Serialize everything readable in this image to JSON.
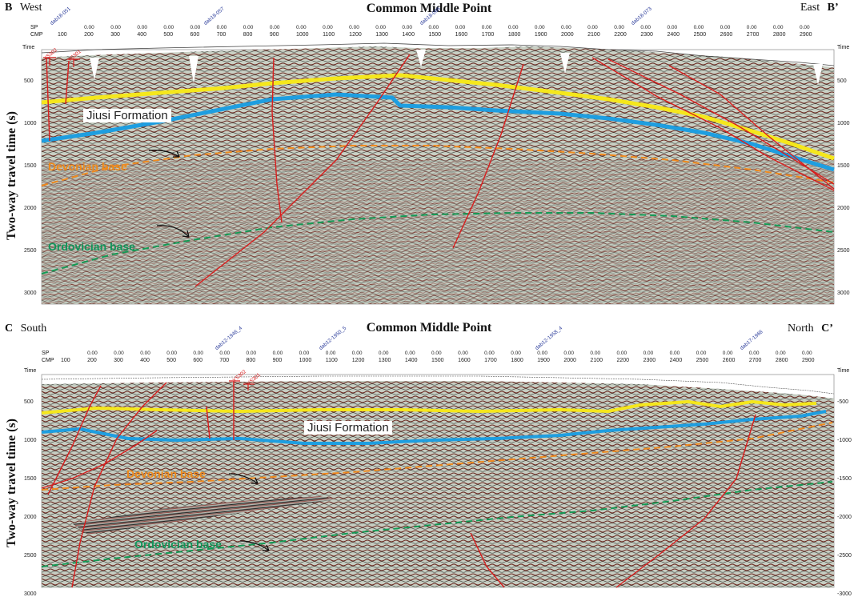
{
  "top": {
    "title": "Common Middle Point",
    "left_letter": "B",
    "left_dir": "West",
    "right_dir": "East",
    "right_letter": "B’",
    "header_sp": "SP",
    "header_cmp": "CMP",
    "header_time": "Time",
    "ylabel": "Two-way travel time (s)",
    "sp_values": [
      "0.00",
      "0.00",
      "0.00",
      "0.00",
      "0.00",
      "0.00",
      "0.00",
      "0.00",
      "0.00",
      "0.00",
      "0.00",
      "0.00",
      "0.00",
      "0.00",
      "0.00",
      "0.00",
      "0.00",
      "0.00",
      "0.00",
      "0.00",
      "0.00",
      "0.00",
      "0.00",
      "0.00",
      "0.00",
      "0.00",
      "0.00",
      "0.00"
    ],
    "cmp_ticks": [
      "100",
      "200",
      "300",
      "400",
      "500",
      "600",
      "700",
      "800",
      "900",
      "1000",
      "1100",
      "1200",
      "1300",
      "1400",
      "1500",
      "1600",
      "1700",
      "1800",
      "1900",
      "2000",
      "2100",
      "2200",
      "2300",
      "2400",
      "2500",
      "2600",
      "2700",
      "2800",
      "2900"
    ],
    "time_ticks": [
      "500",
      "1000",
      "1500",
      "2000",
      "2500",
      "3000"
    ],
    "wells": [
      "dab18-051",
      "dab18-057",
      "dab18-065",
      "dab18-073"
    ],
    "well_markers": [
      "YS302",
      "YS301"
    ],
    "horizons": {
      "jiusi": "Jiusi Formation",
      "devonian": "Devonian base",
      "ordovician": "Ordovician base"
    }
  },
  "bottom": {
    "title": "Common Middle Point",
    "left_letter": "C",
    "left_dir": "South",
    "right_dir": "North",
    "right_letter": "C’",
    "header_sp": "SP",
    "header_cmp": "CMP",
    "header_time": "Time",
    "ylabel": "Two-way travel time (s)",
    "sp_values": [
      "0.00",
      "0.00",
      "0.00",
      "0.00",
      "0.00",
      "0.00",
      "0.00",
      "0.00",
      "0.00",
      "0.00",
      "0.00",
      "0.00",
      "0.00",
      "0.00",
      "0.00",
      "0.00",
      "0.00",
      "0.00",
      "0.00",
      "0.00",
      "0.00",
      "0.00",
      "0.00",
      "0.00",
      "0.00",
      "0.00",
      "0.00",
      "0.00"
    ],
    "cmp_ticks": [
      "100",
      "200",
      "300",
      "400",
      "500",
      "600",
      "700",
      "800",
      "900",
      "1000",
      "1100",
      "1200",
      "1300",
      "1400",
      "1500",
      "1600",
      "1700",
      "1800",
      "1900",
      "2000",
      "2100",
      "2200",
      "2300",
      "2400",
      "2500",
      "2600",
      "2700",
      "2800",
      "2900"
    ],
    "time_ticks": [
      "500",
      "1000",
      "1500",
      "2000",
      "2500",
      "3000"
    ],
    "time_ticks_right": [
      "-500",
      "-1000",
      "-1500",
      "-2000",
      "-2500",
      "-3000"
    ],
    "wells": [
      "dab12-1946_4",
      "dab12-1950_5",
      "dab12-1958_4",
      "dab17-1966"
    ],
    "well_markers": [
      "YS302",
      "YS301"
    ],
    "horizons": {
      "jiusi": "Jiusi Formation",
      "devonian": "Devonian base",
      "ordovician": "Ordovician base"
    }
  },
  "colors": {
    "jiusi_top": "#f5e71c",
    "jiusi_base": "#1e9ee0",
    "devonian": "#f08a1e",
    "ordovician": "#149a55",
    "fault": "#d81e1e"
  }
}
